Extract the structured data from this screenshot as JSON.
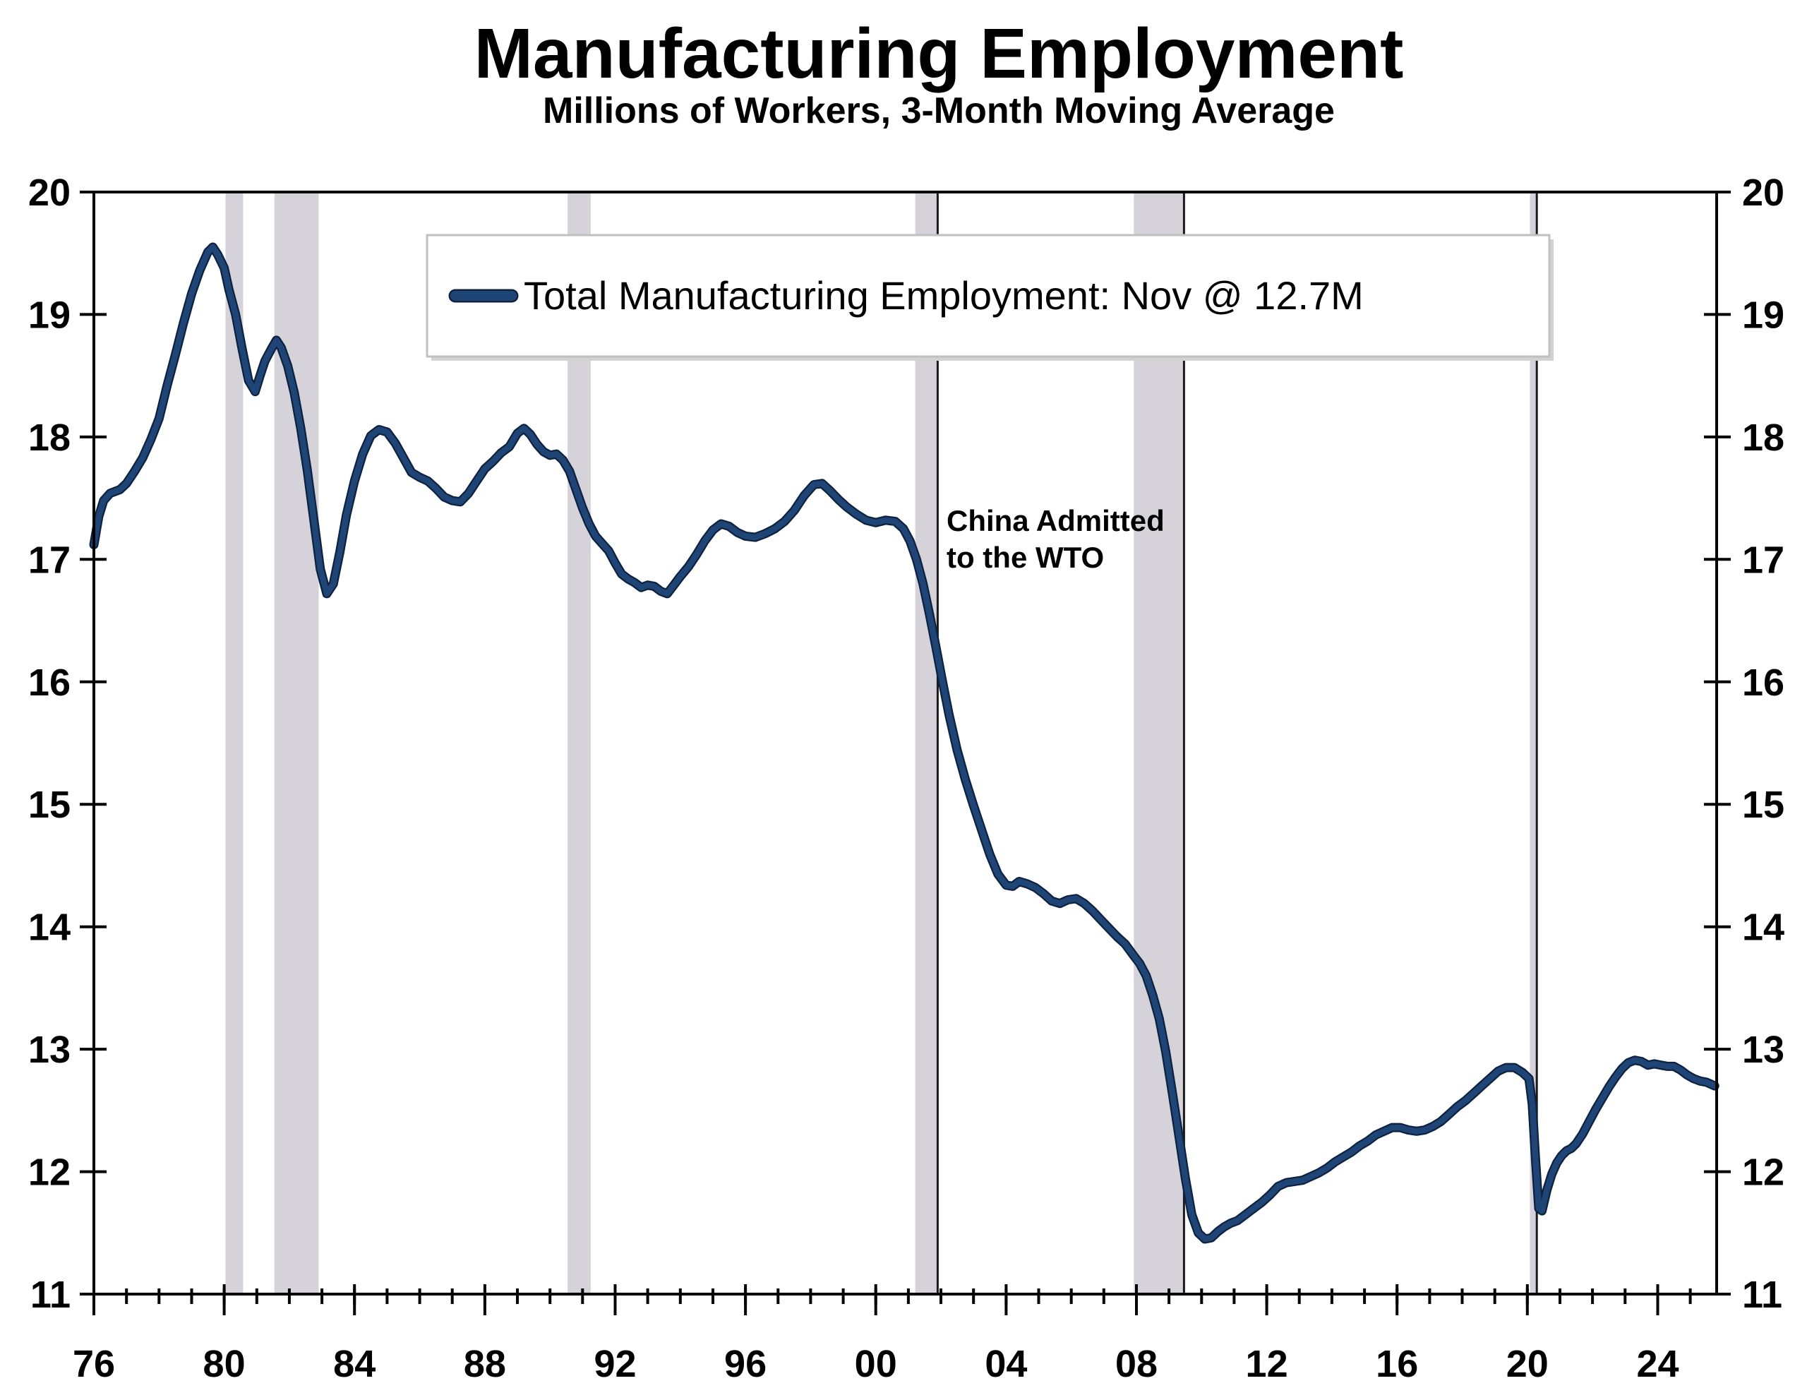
{
  "header": {
    "title": "Manufacturing Employment",
    "subtitle": "Millions of Workers, 3-Month Moving Average"
  },
  "legend": {
    "label": "Total Manufacturing Employment: Nov @ 12.7M"
  },
  "annotation": {
    "line1": "China Admitted",
    "line2": "to the WTO"
  },
  "colors": {
    "line": "#1f4577",
    "line_outline": "#0e2240",
    "recession_band": "#d6d2da",
    "event_line": "#1a1a1a",
    "axis": "#000000",
    "legend_border": "#c0c0c0",
    "legend_shadow": "#d2d2d2"
  },
  "chart_data": {
    "type": "line",
    "title": "Manufacturing Employment",
    "subtitle": "Millions of Workers, 3-Month Moving Average",
    "xlabel": "",
    "ylabel": "Millions of Workers",
    "x_range": [
      1976,
      2025.81
    ],
    "y_range": [
      11,
      20
    ],
    "grid": false,
    "legend_position": "top-inside",
    "y_ticks": [
      11,
      12,
      13,
      14,
      15,
      16,
      17,
      18,
      19,
      20
    ],
    "x_major_ticks": [
      1976,
      1980,
      1984,
      1988,
      1992,
      1996,
      2000,
      2004,
      2008,
      2012,
      2016,
      2020,
      2024
    ],
    "x_major_labels": [
      "76",
      "80",
      "84",
      "88",
      "92",
      "96",
      "00",
      "04",
      "08",
      "12",
      "16",
      "20",
      "24"
    ],
    "x_minor_step": 1,
    "recessions": [
      {
        "start": 1980.04,
        "end": 1980.58
      },
      {
        "start": 1981.54,
        "end": 1982.9
      },
      {
        "start": 1990.54,
        "end": 1991.25
      },
      {
        "start": 2001.21,
        "end": 2001.9
      },
      {
        "start": 2007.92,
        "end": 2009.46
      },
      {
        "start": 2020.08,
        "end": 2020.29
      }
    ],
    "event_lines": [
      {
        "year": 2001.9,
        "name": "china-wto-event-line"
      },
      {
        "year": 2009.46,
        "name": "recession-end-2009-line"
      },
      {
        "year": 2020.29,
        "name": "recession-end-2020-line"
      }
    ],
    "series": [
      {
        "name": "Total Manufacturing Employment",
        "latest_label": "Nov @ 12.7M",
        "unit": "millions of workers",
        "points": [
          [
            1976.0,
            17.12
          ],
          [
            1976.15,
            17.35
          ],
          [
            1976.3,
            17.48
          ],
          [
            1976.5,
            17.54
          ],
          [
            1976.8,
            17.57
          ],
          [
            1977.0,
            17.62
          ],
          [
            1977.25,
            17.72
          ],
          [
            1977.5,
            17.83
          ],
          [
            1977.75,
            17.98
          ],
          [
            1978.0,
            18.15
          ],
          [
            1978.25,
            18.42
          ],
          [
            1978.5,
            18.67
          ],
          [
            1978.75,
            18.93
          ],
          [
            1979.0,
            19.17
          ],
          [
            1979.25,
            19.36
          ],
          [
            1979.5,
            19.51
          ],
          [
            1979.65,
            19.55
          ],
          [
            1979.8,
            19.49
          ],
          [
            1980.0,
            19.38
          ],
          [
            1980.15,
            19.2
          ],
          [
            1980.35,
            19.0
          ],
          [
            1980.55,
            18.72
          ],
          [
            1980.75,
            18.46
          ],
          [
            1980.95,
            18.37
          ],
          [
            1981.1,
            18.5
          ],
          [
            1981.25,
            18.62
          ],
          [
            1981.45,
            18.72
          ],
          [
            1981.6,
            18.79
          ],
          [
            1981.75,
            18.73
          ],
          [
            1981.95,
            18.58
          ],
          [
            1982.15,
            18.36
          ],
          [
            1982.35,
            18.07
          ],
          [
            1982.55,
            17.73
          ],
          [
            1982.75,
            17.33
          ],
          [
            1982.95,
            16.92
          ],
          [
            1983.15,
            16.72
          ],
          [
            1983.35,
            16.8
          ],
          [
            1983.55,
            17.06
          ],
          [
            1983.75,
            17.36
          ],
          [
            1984.0,
            17.64
          ],
          [
            1984.25,
            17.86
          ],
          [
            1984.5,
            18.01
          ],
          [
            1984.75,
            18.06
          ],
          [
            1985.0,
            18.04
          ],
          [
            1985.25,
            17.95
          ],
          [
            1985.5,
            17.83
          ],
          [
            1985.75,
            17.71
          ],
          [
            1986.0,
            17.67
          ],
          [
            1986.25,
            17.64
          ],
          [
            1986.5,
            17.58
          ],
          [
            1986.75,
            17.51
          ],
          [
            1987.0,
            17.48
          ],
          [
            1987.25,
            17.47
          ],
          [
            1987.5,
            17.54
          ],
          [
            1987.75,
            17.64
          ],
          [
            1988.0,
            17.74
          ],
          [
            1988.25,
            17.8
          ],
          [
            1988.5,
            17.87
          ],
          [
            1988.75,
            17.92
          ],
          [
            1989.0,
            18.03
          ],
          [
            1989.2,
            18.07
          ],
          [
            1989.4,
            18.02
          ],
          [
            1989.6,
            17.94
          ],
          [
            1989.8,
            17.88
          ],
          [
            1990.0,
            17.85
          ],
          [
            1990.2,
            17.86
          ],
          [
            1990.4,
            17.81
          ],
          [
            1990.6,
            17.72
          ],
          [
            1990.8,
            17.57
          ],
          [
            1991.0,
            17.42
          ],
          [
            1991.2,
            17.29
          ],
          [
            1991.4,
            17.19
          ],
          [
            1991.6,
            17.13
          ],
          [
            1991.8,
            17.07
          ],
          [
            1992.0,
            16.97
          ],
          [
            1992.2,
            16.88
          ],
          [
            1992.4,
            16.84
          ],
          [
            1992.6,
            16.81
          ],
          [
            1992.8,
            16.77
          ],
          [
            1993.0,
            16.79
          ],
          [
            1993.2,
            16.78
          ],
          [
            1993.4,
            16.74
          ],
          [
            1993.6,
            16.72
          ],
          [
            1993.8,
            16.79
          ],
          [
            1994.0,
            16.86
          ],
          [
            1994.25,
            16.94
          ],
          [
            1994.5,
            17.04
          ],
          [
            1994.75,
            17.15
          ],
          [
            1995.0,
            17.24
          ],
          [
            1995.25,
            17.29
          ],
          [
            1995.5,
            17.27
          ],
          [
            1995.75,
            17.22
          ],
          [
            1996.0,
            17.19
          ],
          [
            1996.3,
            17.18
          ],
          [
            1996.6,
            17.21
          ],
          [
            1996.9,
            17.25
          ],
          [
            1997.2,
            17.31
          ],
          [
            1997.5,
            17.4
          ],
          [
            1997.8,
            17.52
          ],
          [
            1998.1,
            17.61
          ],
          [
            1998.35,
            17.62
          ],
          [
            1998.6,
            17.56
          ],
          [
            1998.85,
            17.49
          ],
          [
            1999.1,
            17.43
          ],
          [
            1999.4,
            17.37
          ],
          [
            1999.7,
            17.32
          ],
          [
            2000.0,
            17.3
          ],
          [
            2000.3,
            17.32
          ],
          [
            2000.6,
            17.31
          ],
          [
            2000.85,
            17.25
          ],
          [
            2001.05,
            17.15
          ],
          [
            2001.25,
            17.0
          ],
          [
            2001.45,
            16.8
          ],
          [
            2001.65,
            16.55
          ],
          [
            2001.85,
            16.28
          ],
          [
            2002.05,
            16.0
          ],
          [
            2002.25,
            15.73
          ],
          [
            2002.5,
            15.44
          ],
          [
            2002.75,
            15.2
          ],
          [
            2003.0,
            14.99
          ],
          [
            2003.25,
            14.79
          ],
          [
            2003.5,
            14.59
          ],
          [
            2003.75,
            14.43
          ],
          [
            2004.0,
            14.34
          ],
          [
            2004.2,
            14.33
          ],
          [
            2004.4,
            14.37
          ],
          [
            2004.65,
            14.35
          ],
          [
            2004.9,
            14.32
          ],
          [
            2005.15,
            14.27
          ],
          [
            2005.4,
            14.21
          ],
          [
            2005.65,
            14.19
          ],
          [
            2005.9,
            14.22
          ],
          [
            2006.15,
            14.23
          ],
          [
            2006.4,
            14.19
          ],
          [
            2006.65,
            14.13
          ],
          [
            2006.9,
            14.06
          ],
          [
            2007.15,
            13.99
          ],
          [
            2007.4,
            13.92
          ],
          [
            2007.65,
            13.86
          ],
          [
            2007.9,
            13.77
          ],
          [
            2008.1,
            13.7
          ],
          [
            2008.3,
            13.6
          ],
          [
            2008.5,
            13.44
          ],
          [
            2008.7,
            13.25
          ],
          [
            2008.9,
            12.98
          ],
          [
            2009.1,
            12.65
          ],
          [
            2009.3,
            12.3
          ],
          [
            2009.5,
            11.95
          ],
          [
            2009.7,
            11.65
          ],
          [
            2009.9,
            11.5
          ],
          [
            2010.1,
            11.45
          ],
          [
            2010.3,
            11.46
          ],
          [
            2010.5,
            11.51
          ],
          [
            2010.7,
            11.55
          ],
          [
            2010.9,
            11.58
          ],
          [
            2011.1,
            11.6
          ],
          [
            2011.35,
            11.65
          ],
          [
            2011.6,
            11.7
          ],
          [
            2011.85,
            11.75
          ],
          [
            2012.1,
            11.81
          ],
          [
            2012.35,
            11.88
          ],
          [
            2012.6,
            11.91
          ],
          [
            2012.85,
            11.92
          ],
          [
            2013.1,
            11.93
          ],
          [
            2013.35,
            11.96
          ],
          [
            2013.6,
            11.99
          ],
          [
            2013.85,
            12.03
          ],
          [
            2014.1,
            12.08
          ],
          [
            2014.35,
            12.12
          ],
          [
            2014.6,
            12.16
          ],
          [
            2014.85,
            12.21
          ],
          [
            2015.1,
            12.25
          ],
          [
            2015.35,
            12.3
          ],
          [
            2015.6,
            12.33
          ],
          [
            2015.85,
            12.36
          ],
          [
            2016.1,
            12.36
          ],
          [
            2016.35,
            12.34
          ],
          [
            2016.6,
            12.33
          ],
          [
            2016.85,
            12.34
          ],
          [
            2017.1,
            12.37
          ],
          [
            2017.35,
            12.41
          ],
          [
            2017.6,
            12.47
          ],
          [
            2017.85,
            12.53
          ],
          [
            2018.1,
            12.58
          ],
          [
            2018.35,
            12.64
          ],
          [
            2018.6,
            12.7
          ],
          [
            2018.85,
            12.76
          ],
          [
            2019.1,
            12.82
          ],
          [
            2019.35,
            12.85
          ],
          [
            2019.6,
            12.85
          ],
          [
            2019.85,
            12.81
          ],
          [
            2020.05,
            12.76
          ],
          [
            2020.15,
            12.55
          ],
          [
            2020.25,
            12.1
          ],
          [
            2020.35,
            11.7
          ],
          [
            2020.45,
            11.68
          ],
          [
            2020.6,
            11.85
          ],
          [
            2020.75,
            11.98
          ],
          [
            2020.9,
            12.07
          ],
          [
            2021.05,
            12.13
          ],
          [
            2021.2,
            12.17
          ],
          [
            2021.35,
            12.19
          ],
          [
            2021.5,
            12.23
          ],
          [
            2021.7,
            12.31
          ],
          [
            2021.9,
            12.41
          ],
          [
            2022.1,
            12.51
          ],
          [
            2022.3,
            12.6
          ],
          [
            2022.5,
            12.69
          ],
          [
            2022.7,
            12.77
          ],
          [
            2022.9,
            12.84
          ],
          [
            2023.1,
            12.89
          ],
          [
            2023.3,
            12.91
          ],
          [
            2023.5,
            12.9
          ],
          [
            2023.7,
            12.87
          ],
          [
            2023.9,
            12.88
          ],
          [
            2024.1,
            12.87
          ],
          [
            2024.3,
            12.86
          ],
          [
            2024.5,
            12.86
          ],
          [
            2024.7,
            12.83
          ],
          [
            2024.9,
            12.79
          ],
          [
            2025.1,
            12.76
          ],
          [
            2025.3,
            12.74
          ],
          [
            2025.5,
            12.73
          ],
          [
            2025.75,
            12.7
          ]
        ]
      }
    ]
  }
}
